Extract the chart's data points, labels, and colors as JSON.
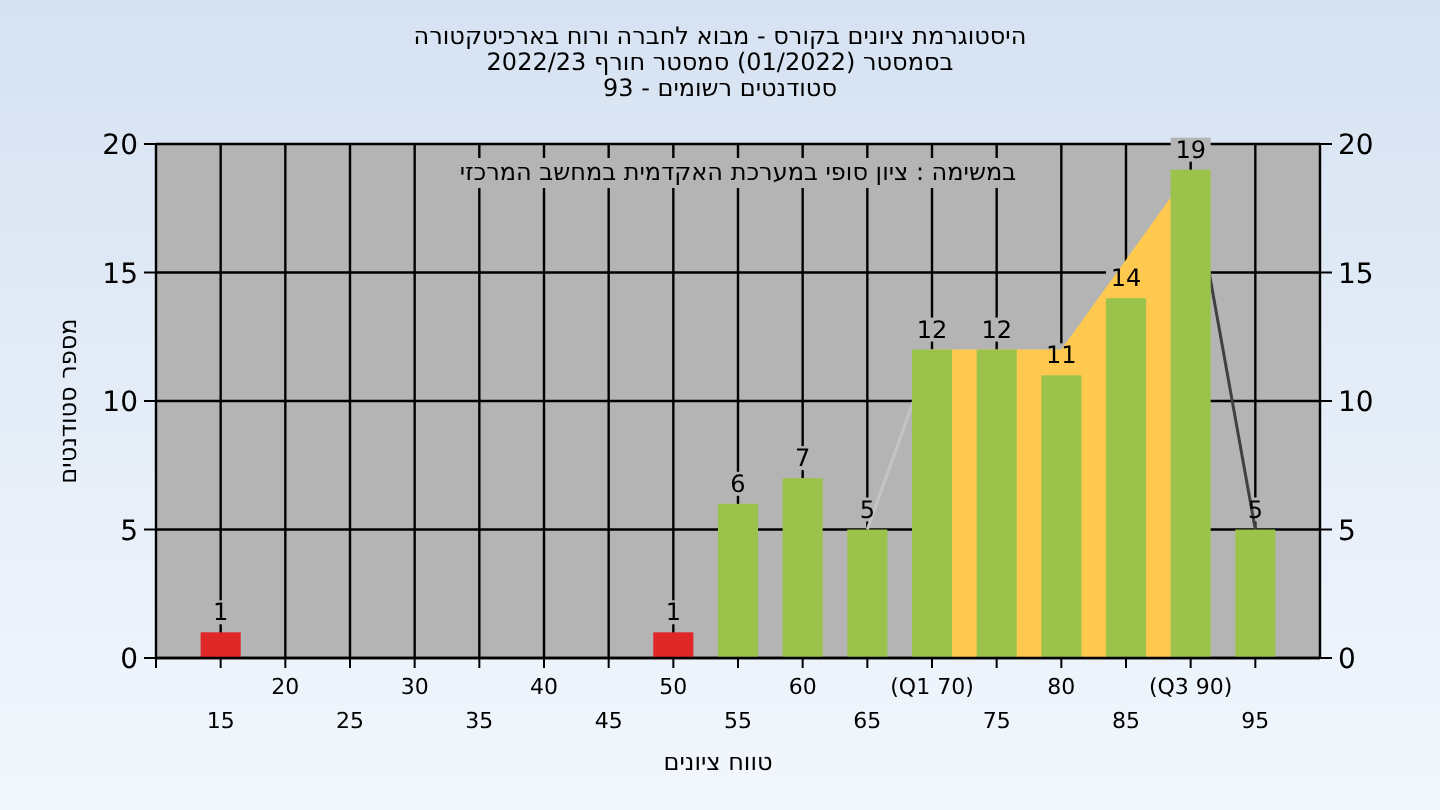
{
  "chart_data": {
    "type": "bar",
    "title": "היסטוגרמת ציונים בקורס - מבוא לחברה ורוח בארכיטקטורה",
    "subtitle": "בסמסטר  (01/2022)  סמסטר חורף 2022/23\nסטודנטים רשומים - 93",
    "xlabel": "טווח ציונים",
    "ylabel": "מספר סטודנטים",
    "annotations": [
      "במשימה : ציון סופי במערכת האקדמית במחשב המרכזי"
    ],
    "categories": [
      "15",
      "20",
      "25",
      "30",
      "35",
      "40",
      "45",
      "50",
      "55",
      "60",
      "65",
      "(Q1 70)",
      "75",
      "80",
      "85",
      "(Q3 90)",
      "95"
    ],
    "series": [
      {
        "type": "area",
        "color": "#ffc84f",
        "values": [
          null,
          null,
          null,
          null,
          null,
          null,
          null,
          null,
          null,
          null,
          null,
          12,
          12,
          12,
          15.5,
          19,
          null
        ]
      },
      {
        "type": "line",
        "color": "#c4c4c4",
        "values": [
          null,
          null,
          null,
          null,
          null,
          null,
          null,
          null,
          null,
          null,
          5,
          12,
          null,
          null,
          null,
          null,
          null
        ]
      },
      {
        "type": "line",
        "color": "#404040",
        "values": [
          null,
          null,
          null,
          null,
          null,
          null,
          null,
          null,
          null,
          null,
          null,
          null,
          null,
          null,
          null,
          19,
          5
        ]
      },
      {
        "colors": [
          "#e02828",
          "#9bc24a",
          "#9bc24a",
          "#9bc24a",
          "#9bc24a",
          "#9bc24a",
          "#9bc24a",
          "#e02828",
          "#9bc24a",
          "#9bc24a",
          "#9bc24a",
          "#9bc24a",
          "#9bc24a",
          "#9bc24a",
          "#9bc24a",
          "#9bc24a",
          "#9bc24a"
        ],
        "values": [
          1,
          0,
          0,
          0,
          0,
          0,
          0,
          1,
          6,
          7,
          5,
          12,
          12,
          11,
          14,
          19,
          5
        ],
        "value_labels": [
          "1",
          null,
          null,
          null,
          null,
          null,
          null,
          "1",
          "6",
          "7",
          "5",
          "12",
          "12",
          "11",
          "14",
          "19",
          "5"
        ]
      }
    ],
    "ylim": [
      0,
      20
    ],
    "yticks": [
      0,
      5,
      10,
      15,
      20
    ],
    "y2lim": [
      0,
      20
    ],
    "y2ticks": [
      0,
      5,
      10,
      15,
      20
    ],
    "grid": true
  }
}
